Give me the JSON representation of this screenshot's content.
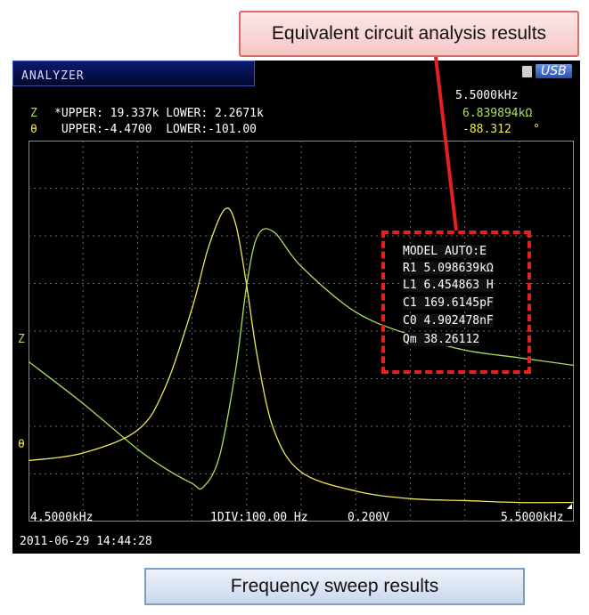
{
  "callouts": {
    "top": "Equivalent circuit analysis results",
    "bottom": "Frequency sweep results"
  },
  "screen": {
    "title": "ANALYZER",
    "usb_label": "USB",
    "freq_current": "5.5000kHz",
    "z_label": "Z",
    "z_limits": "*UPPER: 19.337k LOWER: 2.2671k",
    "z_value": "6.839894kΩ",
    "theta_label": "θ",
    "theta_limits": " UPPER:-4.4700  LOWER:-101.00",
    "theta_value": "-88.312",
    "theta_unit": "°",
    "axis_z_marker": "Z",
    "axis_theta_marker": "θ",
    "freq_start": "4.5000kHz",
    "div_info": "1DIV:100.00 Hz",
    "voltage": "0.200V",
    "freq_end": "5.5000kHz",
    "timestamp": "2011-06-29 14:44:28"
  },
  "model": {
    "lines": [
      "MODEL AUTO:E",
      "R1 5.098639kΩ",
      "L1 6.454863 H",
      "C1 169.6145pF",
      "C0 4.902478nF",
      "Qm 38.26112"
    ]
  },
  "chart_data": {
    "type": "line",
    "xlim": [
      "4.5000kHz",
      "5.5000kHz"
    ],
    "x_div": "100.00 Hz",
    "grid": true,
    "series": [
      {
        "name": "Z",
        "color": "#a8e060",
        "x_khz": [
          4.5,
          4.6,
          4.7,
          4.75,
          4.8,
          4.82,
          4.85,
          4.88,
          4.9,
          4.92,
          4.95,
          5.0,
          5.1,
          5.2,
          5.3,
          5.4,
          5.5
        ],
        "y_frac": [
          0.42,
          0.31,
          0.19,
          0.14,
          0.1,
          0.09,
          0.17,
          0.4,
          0.62,
          0.75,
          0.76,
          0.67,
          0.55,
          0.49,
          0.45,
          0.43,
          0.41
        ]
      },
      {
        "name": "θ",
        "color": "#f0ea55",
        "x_khz": [
          4.5,
          4.6,
          4.7,
          4.75,
          4.8,
          4.83,
          4.86,
          4.88,
          4.9,
          4.92,
          4.95,
          5.0,
          5.1,
          5.2,
          5.3,
          5.4,
          5.5
        ],
        "y_frac": [
          0.16,
          0.18,
          0.24,
          0.35,
          0.56,
          0.72,
          0.82,
          0.78,
          0.62,
          0.43,
          0.24,
          0.13,
          0.08,
          0.06,
          0.055,
          0.05,
          0.05
        ]
      }
    ]
  }
}
